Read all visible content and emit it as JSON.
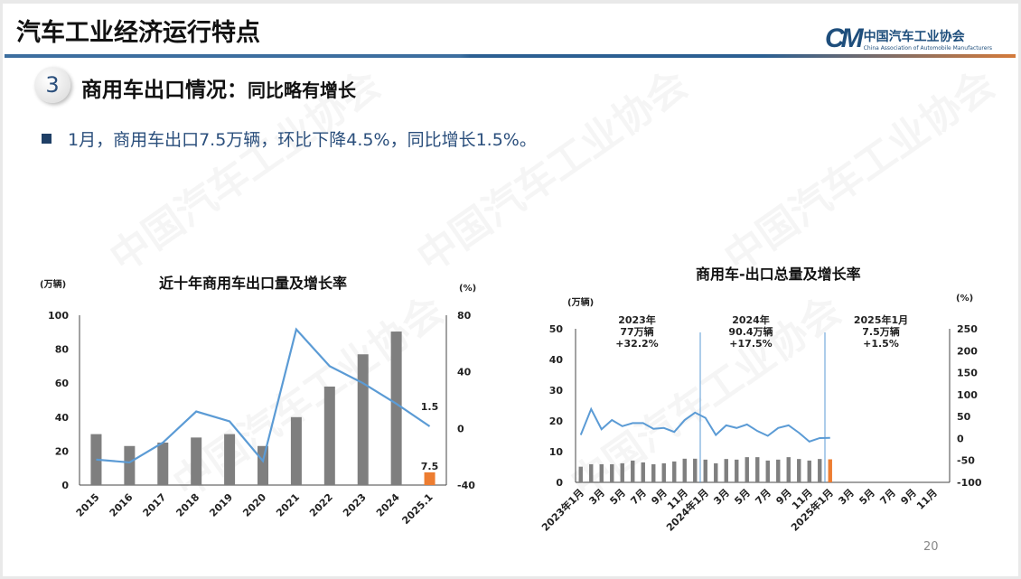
{
  "header": {
    "title": "汽车工业经济运行特点",
    "logo_cn": "中国汽车工业协会",
    "logo_en": "China Association of Automobile Manufacturers",
    "logo_mark": "CM"
  },
  "section": {
    "number": "3",
    "title": "商用车出口情况：",
    "subtitle": "同比略有增长"
  },
  "bullet": "1月，商用车出口7.5万辆，环比下降4.5%，同比增长1.5%。",
  "watermark": "中国汽车工业协会",
  "page_number": "20",
  "colors": {
    "bar": "#7f7f7f",
    "highlight": "#ed7d31",
    "line": "#5b9bd5",
    "navy": "#1e4e7c"
  },
  "chart_data": [
    {
      "type": "bar",
      "title": "近十年商用车出口量及增长率",
      "ylabel": "(万辆)",
      "y2label": "(%)",
      "categories": [
        "2015",
        "2016",
        "2017",
        "2018",
        "2019",
        "2020",
        "2021",
        "2022",
        "2023",
        "2024",
        "2025.1"
      ],
      "series": [
        {
          "name": "出口量",
          "axis": "left",
          "type": "bar",
          "values": [
            30,
            23,
            25,
            28,
            30,
            23,
            40,
            58,
            77,
            90.4,
            7.5
          ]
        },
        {
          "name": "增长率",
          "axis": "right",
          "type": "line",
          "values": [
            -22,
            -24,
            -10,
            12,
            5,
            -23,
            70,
            44,
            32,
            17.5,
            1.5
          ]
        }
      ],
      "ylim": [
        0,
        100
      ],
      "yticks": [
        "0",
        "20",
        "40",
        "60",
        "80",
        "100"
      ],
      "y2lim": [
        -40,
        80
      ],
      "y2ticks": [
        "-40",
        "0",
        "40",
        "80"
      ],
      "data_labels": {
        "bar_last": "7.5",
        "line_last": "1.5"
      }
    },
    {
      "type": "bar",
      "title": "商用车-出口总量及增长率",
      "ylabel": "(万辆)",
      "y2label": "(%)",
      "xticks": [
        "2023年1月",
        "3月",
        "5月",
        "7月",
        "9月",
        "11月",
        "2024年1月",
        "3月",
        "5月",
        "7月",
        "9月",
        "11月",
        "2025年1月",
        "3月",
        "5月",
        "7月",
        "9月",
        "11月"
      ],
      "months": 36,
      "series": [
        {
          "name": "出口量",
          "axis": "left",
          "type": "bar",
          "values": [
            5.1,
            5.9,
            5.9,
            5.9,
            6.2,
            7.1,
            6.5,
            5.9,
            6.2,
            6.8,
            7.7,
            7.7,
            7.4,
            6.2,
            7.6,
            7.4,
            8.2,
            8.2,
            7.1,
            7.4,
            8.2,
            7.6,
            7.1,
            7.6,
            7.5
          ]
        },
        {
          "name": "增长率",
          "axis": "right",
          "type": "line",
          "values": [
            8,
            67,
            21,
            42,
            28,
            35,
            35,
            22,
            24,
            15,
            42,
            59,
            47,
            8,
            30,
            24,
            32,
            17,
            6,
            24,
            30,
            13,
            -7,
            1,
            1.5
          ]
        }
      ],
      "ylim": [
        0,
        50
      ],
      "yticks": [
        "0",
        "10",
        "20",
        "30",
        "40",
        "50"
      ],
      "y2lim": [
        -100,
        250
      ],
      "y2ticks": [
        "-100",
        "-50",
        "0",
        "50",
        "100",
        "150",
        "200",
        "250"
      ],
      "annotations": [
        {
          "lines": [
            "2023年",
            "77万辆",
            "+32.2%"
          ]
        },
        {
          "lines": [
            "2024年",
            "90.4万辆",
            "+17.5%"
          ]
        },
        {
          "lines": [
            "2025年1月",
            "7.5万辆",
            "+1.5%"
          ]
        }
      ]
    }
  ]
}
